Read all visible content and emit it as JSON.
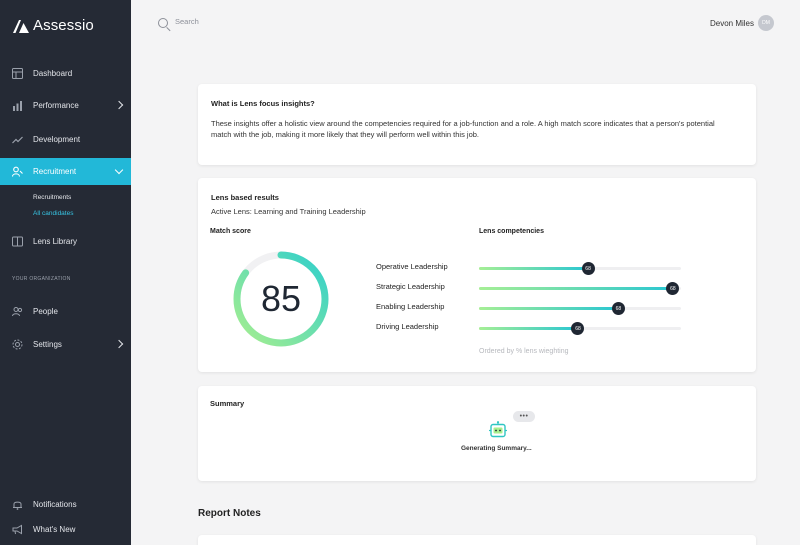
{
  "app": {
    "name": "Assessio"
  },
  "sidebar": {
    "items": [
      {
        "label": "Dashboard",
        "icon": "dashboard-icon"
      },
      {
        "label": "Performance",
        "icon": "bar-chart-icon"
      },
      {
        "label": "Development",
        "icon": "trend-icon"
      },
      {
        "label": "Recruitment",
        "icon": "user-search-icon"
      },
      {
        "label": "Lens Library",
        "icon": "book-icon"
      },
      {
        "label": "People",
        "icon": "people-icon"
      },
      {
        "label": "Settings",
        "icon": "gear-icon"
      },
      {
        "label": "Notifications",
        "icon": "bell-icon"
      },
      {
        "label": "What's New",
        "icon": "megaphone-icon"
      }
    ],
    "recruitment_sub": [
      {
        "label": "Recruitments"
      },
      {
        "label": "All candidates"
      }
    ],
    "section_org": "YOUR ORGANIZATION",
    "accent_color": "#22b8d8"
  },
  "topbar": {
    "search_placeholder": "Search",
    "user_name": "Devon Miles",
    "user_initials": "DM"
  },
  "insights": {
    "title": "What is Lens focus insights?",
    "text": "These insights offer a holistic view around the competencies required for a job-function and a role. A high match score indicates that a person's potential match with the job, making it more likely that they will perform well within this job."
  },
  "results": {
    "title": "Lens based results",
    "active_lens": "Active Lens: Learning and Training Leadership",
    "match_score_label": "Match score",
    "match_score": "85",
    "match_score_value": 85,
    "competencies_label": "Lens competencies",
    "ordered_note": "Ordered by % lens wieghting",
    "competencies": [
      {
        "label": "Operative Leadership",
        "badge": "68",
        "fill_percent": 54
      },
      {
        "label": "Strategic Leadership",
        "badge": "68",
        "fill_percent": 96
      },
      {
        "label": "Enabling Leadership",
        "badge": "68",
        "fill_percent": 69
      },
      {
        "label": "Driving Leadership",
        "badge": "68",
        "fill_percent": 49
      }
    ]
  },
  "summary": {
    "title": "Summary",
    "dots": "•••",
    "status": "Generating Summary..."
  },
  "report_notes": {
    "title": "Report Notes"
  }
}
